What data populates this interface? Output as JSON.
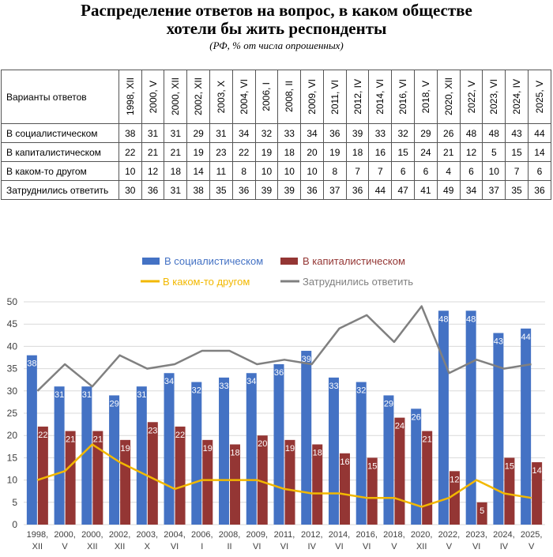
{
  "title_line1": "Распределение ответов на вопрос, в каком обществе",
  "title_line2": "хотели бы жить респонденты",
  "subtitle": "(РФ, % от числа опрошенных)",
  "table": {
    "corner": "Варианты ответов",
    "columns": [
      "1998, XII",
      "2000, V",
      "2000, XII",
      "2002, XII",
      "2003, X",
      "2004, VI",
      "2006, I",
      "2008, II",
      "2009, VI",
      "2011, VI",
      "2012, IV",
      "2014, VI",
      "2016, VI",
      "2018, V",
      "2020, XII",
      "2022, V",
      "2023, VI",
      "2024, IV",
      "2025, V"
    ],
    "rows": [
      {
        "label": "В социалистическом",
        "values": [
          38,
          31,
          31,
          29,
          31,
          34,
          32,
          33,
          34,
          36,
          39,
          33,
          32,
          29,
          26,
          48,
          48,
          43,
          44
        ]
      },
      {
        "label": "В капиталистическом",
        "values": [
          22,
          21,
          21,
          19,
          23,
          22,
          19,
          18,
          20,
          19,
          18,
          16,
          15,
          24,
          21,
          12,
          5,
          15,
          14
        ]
      },
      {
        "label": "В каком-то другом",
        "values": [
          10,
          12,
          18,
          14,
          11,
          8,
          10,
          10,
          10,
          8,
          7,
          7,
          6,
          6,
          4,
          6,
          10,
          7,
          6
        ]
      },
      {
        "label": "Затруднились ответить",
        "values": [
          30,
          36,
          31,
          38,
          35,
          36,
          39,
          39,
          36,
          37,
          36,
          44,
          47,
          41,
          49,
          34,
          37,
          35,
          36
        ]
      }
    ]
  },
  "chart_data": {
    "type": "bar",
    "categories": [
      [
        "1998,",
        "XII"
      ],
      [
        "2000,",
        "V"
      ],
      [
        "2000,",
        "XII"
      ],
      [
        "2002,",
        "XII"
      ],
      [
        "2003,",
        "X"
      ],
      [
        "2004,",
        "VI"
      ],
      [
        "2006,",
        "I"
      ],
      [
        "2008,",
        "II"
      ],
      [
        "2009,",
        "VI"
      ],
      [
        "2011,",
        "VI"
      ],
      [
        "2012,",
        "IV"
      ],
      [
        "2014,",
        "VI"
      ],
      [
        "2016,",
        "VI"
      ],
      [
        "2018,",
        "V"
      ],
      [
        "2020,",
        "XII"
      ],
      [
        "2022,",
        "V"
      ],
      [
        "2023,",
        "VI"
      ],
      [
        "2024,",
        "IV"
      ],
      [
        "2025,",
        "V"
      ]
    ],
    "series": [
      {
        "name": "В социалистическом",
        "kind": "bar",
        "color": "#4472C4",
        "values": [
          38,
          31,
          31,
          29,
          31,
          34,
          32,
          33,
          34,
          36,
          39,
          33,
          32,
          29,
          26,
          48,
          48,
          43,
          44
        ]
      },
      {
        "name": "В капиталистическом",
        "kind": "bar",
        "color": "#943634",
        "values": [
          22,
          21,
          21,
          19,
          23,
          22,
          19,
          18,
          20,
          19,
          18,
          16,
          15,
          24,
          21,
          12,
          5,
          15,
          14
        ]
      },
      {
        "name": "В каком-то другом",
        "kind": "line",
        "color": "#F2B800",
        "values": [
          10,
          12,
          18,
          14,
          11,
          8,
          10,
          10,
          10,
          8,
          7,
          7,
          6,
          6,
          4,
          6,
          10,
          7,
          6
        ]
      },
      {
        "name": "Затруднились ответить",
        "kind": "line",
        "color": "#808080",
        "values": [
          30,
          36,
          31,
          38,
          35,
          36,
          39,
          39,
          36,
          37,
          36,
          44,
          47,
          41,
          49,
          34,
          37,
          35,
          36
        ]
      }
    ],
    "yticks": [
      "0",
      "5",
      "10",
      "15",
      "20",
      "25",
      "30",
      "35",
      "40",
      "45",
      "50"
    ],
    "ylim": [
      0,
      50
    ],
    "grid": true,
    "legend_position": "top"
  }
}
